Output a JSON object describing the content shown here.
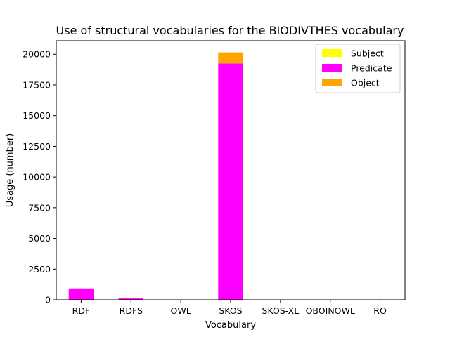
{
  "chart_data": {
    "type": "bar",
    "stacked": true,
    "title": "Use of structural vocabularies for the BIODIVTHES vocabulary",
    "xlabel": "Vocabulary",
    "ylabel": "Usage (number)",
    "ylim": [
      0,
      21100
    ],
    "yticks": [
      0,
      2500,
      5000,
      7500,
      10000,
      12500,
      15000,
      17500,
      20000
    ],
    "legend_position": "top-right",
    "grid": false,
    "categories": [
      "RDF",
      "RDFS",
      "OWL",
      "SKOS",
      "SKOS-XL",
      "OBOINOWL",
      "RO"
    ],
    "series": [
      {
        "name": "Subject",
        "color": "#ffff00",
        "values": [
          0,
          0,
          0,
          0,
          0,
          0,
          0
        ]
      },
      {
        "name": "Predicate",
        "color": "#ff00ff",
        "values": [
          930,
          110,
          0,
          19250,
          0,
          0,
          0
        ]
      },
      {
        "name": "Object",
        "color": "#ffa500",
        "values": [
          0,
          30,
          0,
          900,
          0,
          0,
          0
        ]
      }
    ]
  }
}
